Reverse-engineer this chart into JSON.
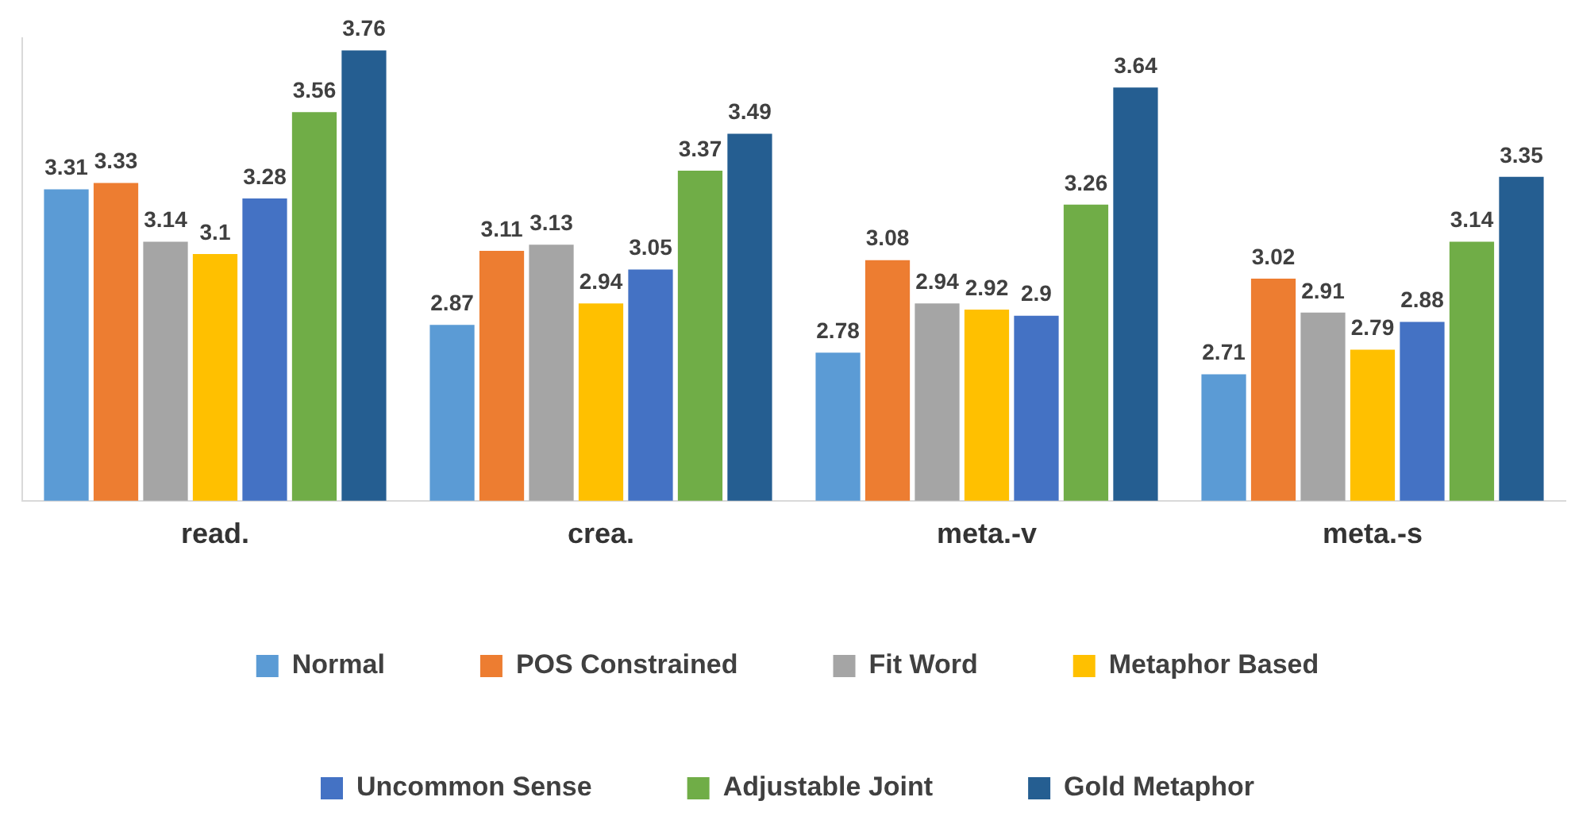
{
  "chart_data": {
    "type": "bar",
    "categories": [
      "read.",
      "crea.",
      "meta.-v",
      "meta.-s"
    ],
    "series": [
      {
        "name": "Normal",
        "color": "#5b9bd5",
        "values": [
          3.31,
          2.87,
          2.78,
          2.71
        ]
      },
      {
        "name": "POS Constrained",
        "color": "#ed7d31",
        "values": [
          3.33,
          3.11,
          3.08,
          3.02
        ]
      },
      {
        "name": "Fit Word",
        "color": "#a5a5a5",
        "values": [
          3.14,
          3.13,
          2.94,
          2.91
        ]
      },
      {
        "name": "Metaphor Based",
        "color": "#ffc000",
        "values": [
          3.1,
          2.94,
          2.92,
          2.79
        ]
      },
      {
        "name": "Uncommon Sense",
        "color": "#4472c4",
        "values": [
          3.28,
          3.05,
          2.9,
          2.88
        ]
      },
      {
        "name": "Adjustable Joint",
        "color": "#70ad47",
        "values": [
          3.56,
          3.37,
          3.26,
          3.14
        ]
      },
      {
        "name": "Gold Metaphor",
        "color": "#255e91",
        "values": [
          3.76,
          3.49,
          3.64,
          3.35
        ]
      }
    ],
    "ylim": [
      2.3,
      3.8
    ],
    "data_labels": true,
    "legend": "bottom",
    "grid": false,
    "tick_labels": "x"
  }
}
